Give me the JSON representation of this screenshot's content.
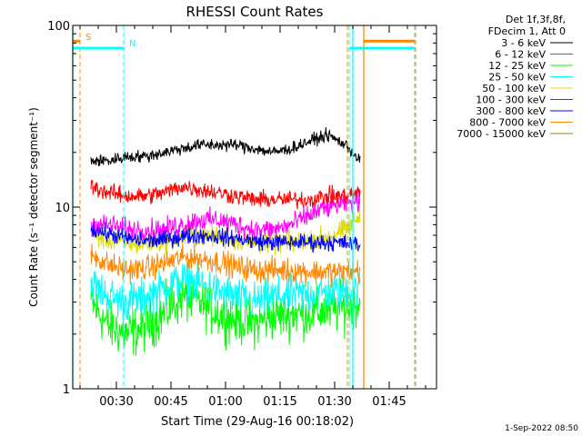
{
  "chart_data": {
    "type": "line",
    "title": "RHESSI Count Rates",
    "xlabel": "Start Time (29-Aug-16 00:18:02)",
    "ylabel": "Count Rate (s⁻¹ detector segment⁻¹)",
    "y_scale": "log",
    "ylim": [
      1,
      100
    ],
    "xlim_minutes_after_start": [
      0,
      100
    ],
    "x_tick_labels": [
      "00:30",
      "00:45",
      "01:00",
      "01:15",
      "01:30",
      "01:45"
    ],
    "x_tick_minutes": [
      12,
      27,
      42,
      57,
      72,
      87
    ],
    "y_tick_labels": [
      "1",
      "10",
      "100"
    ],
    "y_tick_values": [
      1,
      10,
      100
    ],
    "legend_header": [
      "Det 1f,3f,8f,",
      "FDecim 1, Att 0"
    ],
    "legend_position": "right",
    "series": [
      {
        "name": "3 - 6 keV",
        "color": "#000000",
        "drawn": true,
        "x": [
          5,
          10,
          15,
          20,
          25,
          30,
          35,
          40,
          45,
          50,
          55,
          60,
          65,
          70,
          75,
          79
        ],
        "values": [
          18,
          18,
          19,
          19,
          20,
          21,
          22,
          22,
          22,
          21,
          20,
          21,
          23,
          25,
          22,
          18
        ]
      },
      {
        "name": "6 - 12 keV",
        "color": "#ff00ff",
        "drawn": true,
        "x": [
          5,
          10,
          15,
          20,
          25,
          30,
          35,
          40,
          45,
          50,
          55,
          60,
          65,
          70,
          75,
          79
        ],
        "values": [
          8.0,
          8.0,
          7.5,
          7.5,
          7.5,
          8.0,
          8.5,
          8.5,
          8.0,
          7.5,
          7.5,
          8.0,
          9.0,
          10,
          10.5,
          11
        ]
      },
      {
        "name": "12 - 25 keV",
        "color": "#00ff00",
        "drawn": true,
        "x": [
          5,
          10,
          15,
          20,
          25,
          30,
          35,
          40,
          45,
          50,
          55,
          60,
          65,
          70,
          75,
          79
        ],
        "values": [
          3.0,
          2.2,
          2.0,
          2.2,
          2.6,
          3.2,
          3.0,
          2.6,
          2.4,
          2.3,
          2.5,
          2.6,
          2.6,
          2.7,
          2.8,
          3.0
        ]
      },
      {
        "name": "25 - 50 keV",
        "color": "#00ffff",
        "drawn": true,
        "x": [
          5,
          10,
          15,
          20,
          25,
          30,
          35,
          40,
          45,
          50,
          55,
          60,
          65,
          70,
          75,
          79
        ],
        "values": [
          3.8,
          3.2,
          3.0,
          3.2,
          3.6,
          4.0,
          3.8,
          3.4,
          3.2,
          3.0,
          3.2,
          3.3,
          3.3,
          3.4,
          3.5,
          3.6
        ]
      },
      {
        "name": "50 - 100 keV",
        "color": "#dddd00",
        "drawn": true,
        "x": [
          5,
          10,
          15,
          20,
          25,
          30,
          35,
          40,
          45,
          50,
          55,
          60,
          65,
          70,
          75,
          79
        ],
        "values": [
          7.0,
          6.6,
          6.3,
          6.3,
          6.5,
          6.8,
          7.0,
          6.9,
          6.6,
          6.4,
          6.3,
          6.4,
          6.6,
          6.8,
          7.5,
          9.0
        ]
      },
      {
        "name": "100 - 300 keV",
        "color": "#ff0000",
        "drawn": true,
        "x": [
          5,
          10,
          15,
          20,
          25,
          30,
          35,
          40,
          45,
          50,
          55,
          60,
          65,
          70,
          75,
          79
        ],
        "values": [
          13,
          12,
          11.5,
          11.5,
          12,
          13,
          12.5,
          12,
          11.5,
          11,
          11,
          11,
          11,
          11.5,
          11.5,
          12
        ]
      },
      {
        "name": "300 - 800 keV",
        "color": "#0000ff",
        "drawn": true,
        "x": [
          5,
          10,
          15,
          20,
          25,
          30,
          35,
          40,
          45,
          50,
          55,
          60,
          65,
          70,
          75,
          79
        ],
        "values": [
          7.6,
          7.1,
          6.7,
          6.5,
          6.6,
          6.9,
          7.0,
          6.9,
          6.7,
          6.5,
          6.4,
          6.4,
          6.4,
          6.4,
          6.3,
          6.2
        ]
      },
      {
        "name": "800 - 7000 keV",
        "color": "#ff8800",
        "drawn": true,
        "x": [
          5,
          10,
          15,
          20,
          25,
          30,
          35,
          40,
          45,
          50,
          55,
          60,
          65,
          70,
          75,
          79
        ],
        "values": [
          5.5,
          4.8,
          4.5,
          4.6,
          4.9,
          5.3,
          5.2,
          5.0,
          4.7,
          4.5,
          4.5,
          4.5,
          4.4,
          4.4,
          4.4,
          4.5
        ]
      },
      {
        "name": "7000 - 15000 keV",
        "color": "#aa7700",
        "drawn": false,
        "x": [],
        "values": []
      }
    ],
    "markers": [
      {
        "label": "S",
        "color": "#ff8800",
        "style": "dashed",
        "x_start": 2,
        "x_end": 75.5
      },
      {
        "label": "N",
        "color": "#00ffff",
        "style": "dashed",
        "x_start": 14,
        "x_end": 76
      }
    ],
    "bars": [
      {
        "color": "#ff8800",
        "segments": [
          [
            0,
            2
          ],
          [
            80,
            94
          ]
        ],
        "level": 82
      },
      {
        "color": "#00ffff",
        "segments": [
          [
            0,
            14
          ],
          [
            76,
            94
          ]
        ],
        "level": 75
      }
    ],
    "solid_lines": [
      {
        "color": "#00ffff",
        "x": 0
      },
      {
        "color": "#00ffff",
        "x": 77
      },
      {
        "color": "#ff8800",
        "x": 80
      }
    ],
    "dashed_lines": [
      {
        "color": "#ff8800",
        "x": 94
      },
      {
        "color": "#00ffff",
        "x": 94.3
      }
    ],
    "timestamp": "1-Sep-2022 08:50"
  }
}
